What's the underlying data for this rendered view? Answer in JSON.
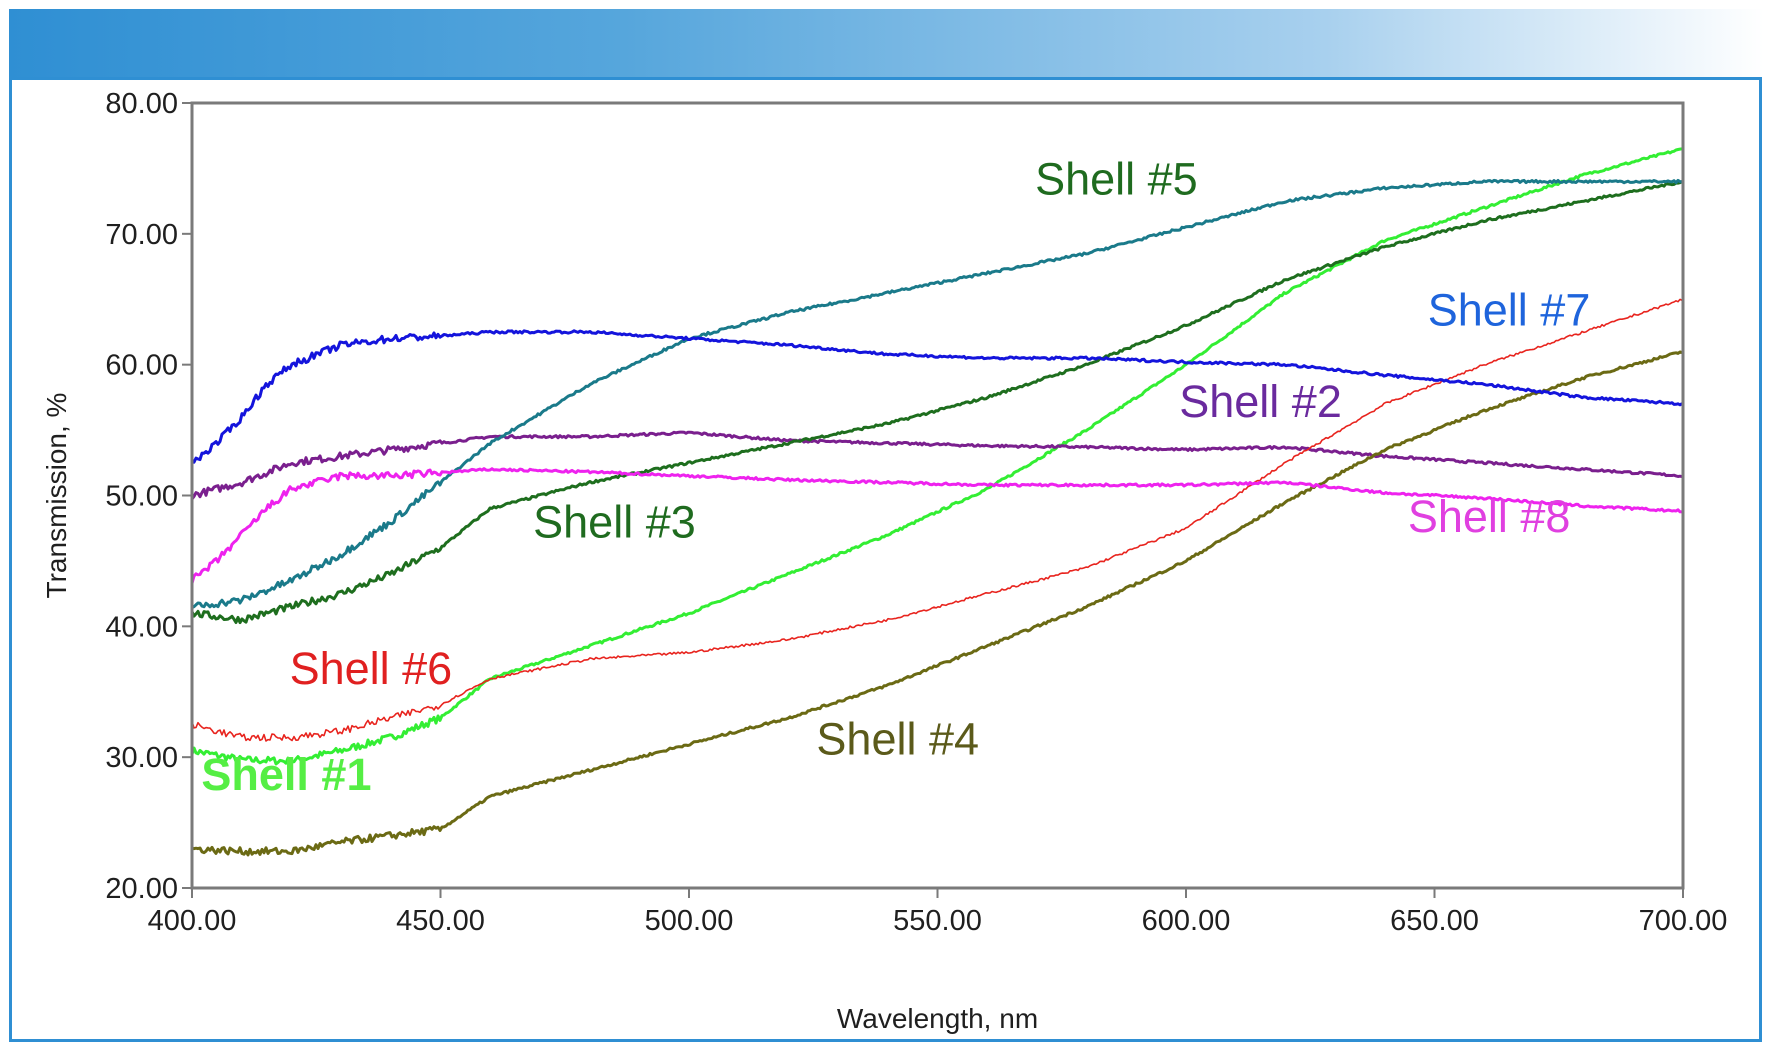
{
  "chart_data": {
    "type": "line",
    "title": "",
    "xlabel": "Wavelength, nm",
    "ylabel": "Transmission, %",
    "xlim": [
      400,
      700
    ],
    "ylim": [
      20,
      80
    ],
    "xticks": [
      "400.00",
      "450.00",
      "500.00",
      "550.00",
      "600.00",
      "650.00",
      "700.00"
    ],
    "yticks": [
      "20.00",
      "30.00",
      "40.00",
      "50.00",
      "60.00",
      "70.00",
      "80.00"
    ],
    "grid": false,
    "legend": "inline labels",
    "series": [
      {
        "name": "Shell #1",
        "color": "#33ee33",
        "bold": true,
        "x": [
          400,
          410,
          420,
          430,
          440,
          450,
          460,
          480,
          500,
          520,
          540,
          560,
          580,
          600,
          620,
          640,
          660,
          680,
          700
        ],
        "y": [
          30.5,
          29.8,
          29.7,
          30.5,
          31.5,
          33.0,
          36.0,
          38.5,
          41.0,
          44.0,
          47.0,
          50.5,
          55.0,
          60.0,
          65.5,
          69.5,
          72.0,
          74.5,
          76.5
        ]
      },
      {
        "name": "Shell #2",
        "color": "#7a1f8e",
        "bold": false,
        "x": [
          400,
          410,
          420,
          430,
          440,
          460,
          480,
          500,
          520,
          540,
          560,
          580,
          600,
          620,
          640,
          660,
          680,
          700
        ],
        "y": [
          50.0,
          51.0,
          52.5,
          53.0,
          53.5,
          54.5,
          54.5,
          54.8,
          54.2,
          54.0,
          53.8,
          53.7,
          53.5,
          53.7,
          53.0,
          52.5,
          52.0,
          51.5
        ]
      },
      {
        "name": "Shell #3",
        "color": "#1e6e1e",
        "bold": false,
        "x": [
          400,
          410,
          420,
          430,
          440,
          450,
          460,
          480,
          500,
          520,
          540,
          560,
          580,
          600,
          620,
          640,
          660,
          680,
          700
        ],
        "y": [
          41.0,
          40.5,
          41.5,
          42.5,
          44.0,
          46.0,
          49.0,
          51.0,
          52.5,
          54.0,
          55.5,
          57.5,
          60.0,
          63.0,
          66.5,
          69.0,
          71.0,
          72.5,
          74.0
        ]
      },
      {
        "name": "Shell #4",
        "color": "#6b6a14",
        "bold": false,
        "x": [
          400,
          410,
          420,
          430,
          440,
          450,
          460,
          480,
          500,
          520,
          540,
          560,
          580,
          600,
          620,
          640,
          660,
          680,
          700
        ],
        "y": [
          23.0,
          22.8,
          22.8,
          23.5,
          24.0,
          24.5,
          27.0,
          29.0,
          31.0,
          33.0,
          35.5,
          38.5,
          41.5,
          45.0,
          49.5,
          53.5,
          56.5,
          59.0,
          61.0
        ]
      },
      {
        "name": "Shell #5",
        "color": "#1a7a8a",
        "bold": false,
        "x": [
          400,
          410,
          420,
          430,
          440,
          450,
          460,
          480,
          500,
          520,
          540,
          560,
          580,
          600,
          620,
          640,
          660,
          680,
          700
        ],
        "y": [
          41.5,
          42.0,
          43.5,
          45.5,
          48.0,
          51.0,
          54.0,
          58.5,
          62.0,
          64.0,
          65.5,
          67.0,
          68.5,
          70.5,
          72.5,
          73.5,
          74.0,
          74.0,
          74.0
        ]
      },
      {
        "name": "Shell #6",
        "color": "#e8241e",
        "bold": false,
        "x": [
          400,
          410,
          420,
          430,
          440,
          450,
          460,
          480,
          500,
          520,
          540,
          560,
          580,
          600,
          610,
          620,
          640,
          660,
          680,
          700
        ],
        "y": [
          32.5,
          31.5,
          31.5,
          32.0,
          33.0,
          34.0,
          36.0,
          37.5,
          38.0,
          39.0,
          40.5,
          42.5,
          44.5,
          47.5,
          50.0,
          52.5,
          57.0,
          60.0,
          62.5,
          65.0
        ]
      },
      {
        "name": "Shell #7",
        "color": "#1414dc",
        "bold": false,
        "x": [
          400,
          405,
          410,
          415,
          420,
          430,
          440,
          450,
          460,
          480,
          500,
          520,
          540,
          560,
          580,
          600,
          620,
          640,
          660,
          680,
          700
        ],
        "y": [
          52.5,
          54.0,
          56.0,
          58.5,
          60.0,
          61.5,
          62.0,
          62.2,
          62.5,
          62.5,
          62.0,
          61.5,
          60.8,
          60.5,
          60.5,
          60.2,
          60.0,
          59.2,
          58.5,
          57.5,
          57.0
        ]
      },
      {
        "name": "Shell #8",
        "color": "#ee22ee",
        "bold": false,
        "x": [
          400,
          405,
          410,
          415,
          420,
          430,
          440,
          460,
          480,
          500,
          520,
          540,
          560,
          580,
          600,
          620,
          640,
          660,
          680,
          700
        ],
        "y": [
          43.5,
          45.0,
          47.0,
          49.0,
          50.5,
          51.5,
          51.5,
          52.0,
          51.8,
          51.5,
          51.2,
          51.0,
          50.8,
          50.8,
          50.8,
          51.0,
          50.2,
          49.8,
          49.2,
          48.8
        ]
      }
    ],
    "annotations": [
      {
        "text": "Shell #1",
        "series": 0,
        "x": 419,
        "y": 27.5,
        "color": "#55ee44",
        "bold": true
      },
      {
        "text": "Shell #2",
        "series": 1,
        "x": 615,
        "y": 56.0,
        "color": "#6a2a9e",
        "bold": false
      },
      {
        "text": "Shell #3",
        "series": 2,
        "x": 485,
        "y": 46.8,
        "color": "#1f6b1f",
        "bold": false
      },
      {
        "text": "Shell #4",
        "series": 3,
        "x": 542,
        "y": 30.2,
        "color": "#5b5a1a",
        "bold": false
      },
      {
        "text": "Shell #5",
        "series": 4,
        "x": 586,
        "y": 73.0,
        "color": "#1f6b1f",
        "bold": false
      },
      {
        "text": "Shell #6",
        "series": 5,
        "x": 436,
        "y": 35.6,
        "color": "#e02020",
        "bold": false
      },
      {
        "text": "Shell #7",
        "series": 6,
        "x": 665,
        "y": 63.0,
        "color": "#1e64dc",
        "bold": false
      },
      {
        "text": "Shell #8",
        "series": 7,
        "x": 661,
        "y": 47.2,
        "color": "#e040e0",
        "bold": false
      }
    ]
  }
}
